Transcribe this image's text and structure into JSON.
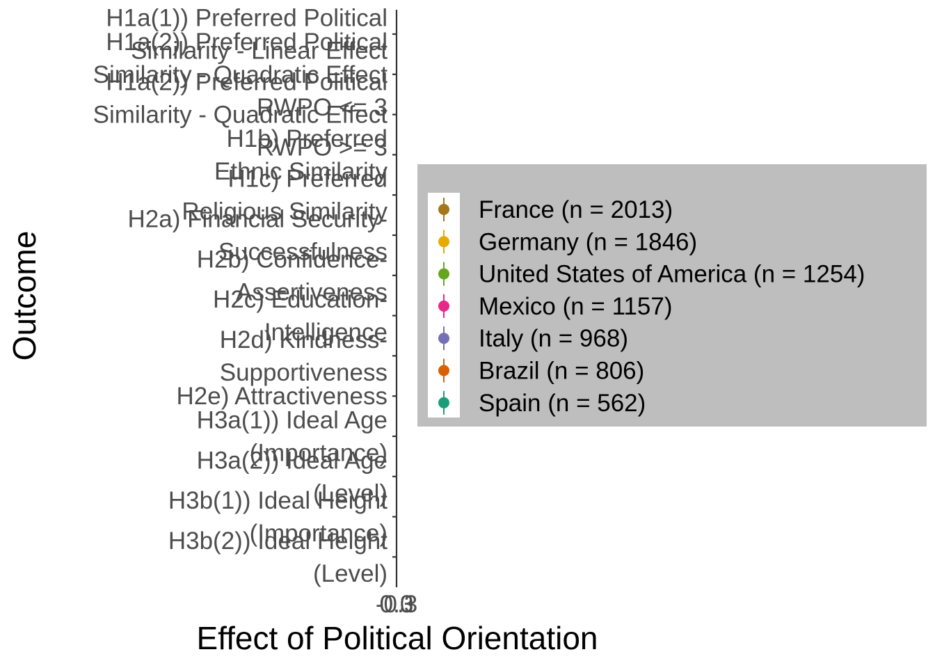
{
  "chart_data": {
    "type": "scatter",
    "xlabel": "Effect of Political Orientation",
    "ylabel": "Outcome",
    "x_tick_labels": [
      "-0.3",
      "0.0",
      "0.3"
    ],
    "categories": [
      "H1a(1)) Preferred Political Similarity - Linear Effect",
      "H1a(2)) Preferred Political Similarity - Quadratic Effect RWPO <= 3",
      "H1a(2)) Preferred Political Similarity - Quadratic Effect RWPO >= 3",
      "H1b) Preferred Ethnic Similarity",
      "H1c) Preferred Religious Similarity",
      "H2a) Financial Security-Successfulness",
      "H2b) Confidence-Assertiveness",
      "H2c) Education-Intelligence",
      "H2d) Kindness-Supportiveness",
      "H2e) Attractiveness",
      "H3a(1)) Ideal Age (Importance)",
      "H3a(2)) Ideal Age (Level)",
      "H3b(1)) Ideal Height (Importance)",
      "H3b(2)) Ideal Height (Level)"
    ],
    "category_lines": [
      [
        "H1a(1)) Preferred Political",
        "Similarity - Linear Effect"
      ],
      [
        "H1a(2)) Preferred Political",
        "Similarity - Quadratic Effect",
        "RWPO <= 3"
      ],
      [
        "H1a(2)) Preferred Political",
        "Similarity - Quadratic Effect",
        "RWPO >= 3"
      ],
      [
        "H1b) Preferred",
        "Ethnic Similarity"
      ],
      [
        "H1c) Preferred",
        "Religious Similarity"
      ],
      [
        "H2a) Financial Security-",
        "Successfulness"
      ],
      [
        "H2b) Confidence-",
        "Assertiveness"
      ],
      [
        "H2c) Education-",
        "Intelligence"
      ],
      [
        "H2d) Kindness-",
        "Supportiveness"
      ],
      [
        "H2e) Attractiveness"
      ],
      [
        "H3a(1)) Ideal Age",
        "(Importance)"
      ],
      [
        "H3a(2)) Ideal Age",
        "(Level)"
      ],
      [
        "H3b(1)) Ideal Height",
        "(Importance)"
      ],
      [
        "H3b(2)) Ideal Height",
        "(Level)"
      ]
    ],
    "series": [
      {
        "name": "France (n = 2013)",
        "color": "#A6761D"
      },
      {
        "name": "Germany (n = 1846)",
        "color": "#E6AB02"
      },
      {
        "name": "United States of America (n = 1254)",
        "color": "#66A61E"
      },
      {
        "name": "Mexico (n = 1157)",
        "color": "#E7298A"
      },
      {
        "name": "Italy (n = 968)",
        "color": "#7570B3"
      },
      {
        "name": "Brazil (n = 806)",
        "color": "#D95F02"
      },
      {
        "name": "Spain (n = 562)",
        "color": "#1B9E77"
      }
    ],
    "legend_position": "right",
    "legend_background": "#bebebe",
    "grid": false
  }
}
